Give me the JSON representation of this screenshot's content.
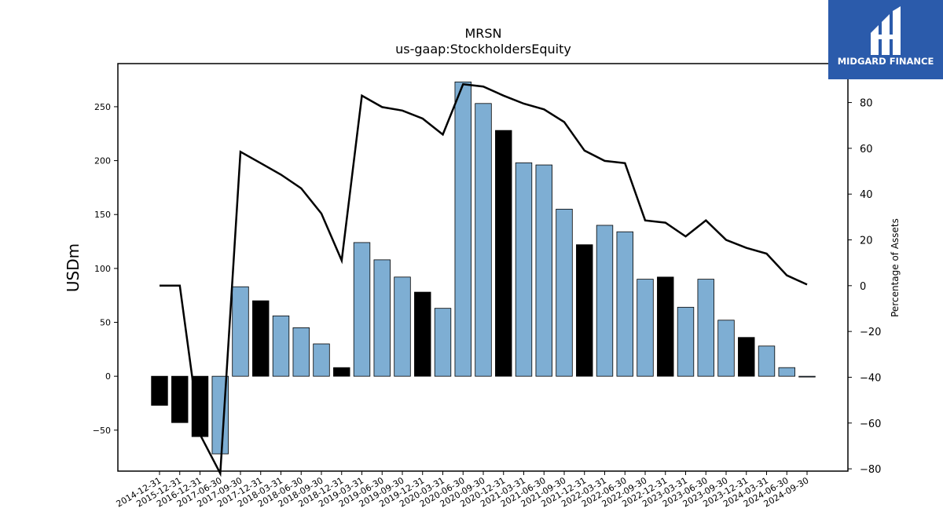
{
  "logo": {
    "text": "MIDGARD FINANCE",
    "bg": "#2b5bab"
  },
  "chart_data": {
    "type": "bar",
    "title": "MRSN",
    "subtitle": "us-gaap:StockholdersEquity",
    "ylabel": "USDm",
    "y2label": "Percentage of Assets",
    "ylim": [
      -88,
      290
    ],
    "y2lim": [
      -81,
      97
    ],
    "yticks": [
      -50,
      0,
      50,
      100,
      150,
      200,
      250
    ],
    "y2ticks": [
      -80,
      -60,
      -40,
      -20,
      0,
      20,
      40,
      60,
      80
    ],
    "colors": {
      "quarter": "#7eaed3",
      "year_end": "#000000",
      "line": "#000000"
    },
    "categories": [
      "2014-12-31",
      "2015-12-31",
      "2016-12-31",
      "2017-06-30",
      "2017-09-30",
      "2017-12-31",
      "2018-03-31",
      "2018-06-30",
      "2018-09-30",
      "2018-12-31",
      "2019-03-31",
      "2019-06-30",
      "2019-09-30",
      "2019-12-31",
      "2020-03-31",
      "2020-06-30",
      "2020-09-30",
      "2020-12-31",
      "2021-03-31",
      "2021-06-30",
      "2021-09-30",
      "2021-12-31",
      "2022-03-31",
      "2022-06-30",
      "2022-09-30",
      "2022-12-31",
      "2023-03-31",
      "2023-06-30",
      "2023-09-30",
      "2023-12-31",
      "2024-03-31",
      "2024-06-30",
      "2024-09-30"
    ],
    "series": [
      {
        "kind": "bar",
        "values": [
          -27,
          -43,
          -56,
          -72,
          83,
          70,
          56,
          45,
          30,
          8,
          124,
          108,
          92,
          78,
          63,
          273,
          253,
          228,
          198,
          196,
          155,
          122,
          140,
          134,
          90,
          92,
          64,
          90,
          52,
          36,
          28,
          8,
          0
        ]
      },
      {
        "kind": "line",
        "axis": "right",
        "values": [
          0,
          0,
          -65,
          -82,
          58.5,
          53.5,
          48.5,
          42.5,
          31.5,
          11,
          83,
          78,
          76.5,
          73,
          66,
          88,
          87,
          83,
          79.5,
          77,
          71.5,
          59,
          54.5,
          53.5,
          28.5,
          27.5,
          21.5,
          28.5,
          20,
          16.5,
          14,
          4.5,
          0.5
        ]
      }
    ]
  }
}
